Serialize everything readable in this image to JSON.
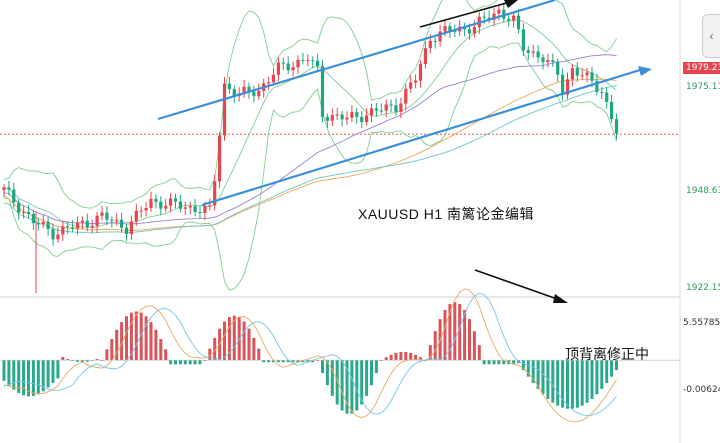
{
  "chart_data": [
    {
      "type": "candlestick",
      "title": "XAUUSD   H1   南篱论金编辑",
      "symbol": "XAUUSD",
      "timeframe": "H1",
      "ylim": [
        1918,
        2030
      ],
      "y_ticks": [
        "1979.23",
        "1975.11",
        "1948.63",
        "1922.15"
      ],
      "current_price": 1979.23,
      "current_price_label": "1979.23",
      "indicators": [
        "Bollinger Bands",
        "Moving Averages"
      ],
      "channel_lines": [
        {
          "name": "upper",
          "from": [
            14,
            1996
          ],
          "to": [
            110,
            2032
          ]
        },
        {
          "name": "lower",
          "from": [
            42,
            1949
          ],
          "to": [
            132,
            1981
          ]
        }
      ]
    },
    {
      "type": "bar",
      "indicator": "MACD",
      "y_ticks": [
        "5.55785",
        "-0.00624"
      ],
      "ylim": [
        -8,
        10
      ],
      "annotation": "顶背离修正中"
    }
  ],
  "icons": {
    "collapse": "chevron-left-icon"
  }
}
